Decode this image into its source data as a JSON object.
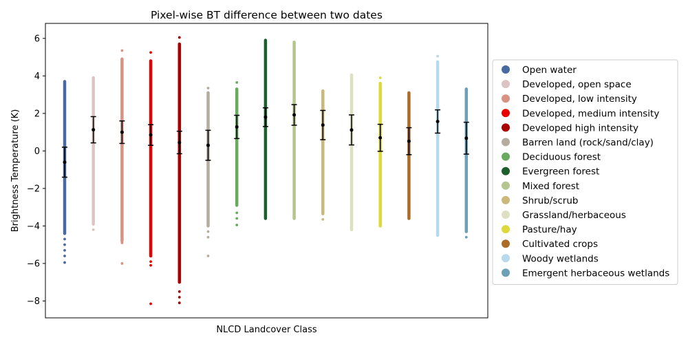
{
  "chart_data": {
    "type": "scatter",
    "title": "Pixel-wise BT difference between two dates",
    "xlabel": "NLCD Landcover Class",
    "ylabel": "Brightness Temperature (K)",
    "ylim": [
      -8.9,
      6.8
    ],
    "yticks": [
      -8,
      -6,
      -4,
      -2,
      0,
      2,
      4,
      6
    ],
    "grid": false,
    "legend_position": "right",
    "series": [
      {
        "name": "Open water",
        "color": "#476ba1",
        "min": -5.95,
        "max": 3.7,
        "mean": -0.6,
        "std": 0.8,
        "outliers_low": [
          -4.4,
          -4.7,
          -5.0,
          -5.3,
          -5.6,
          -5.95
        ]
      },
      {
        "name": "Developed, open space",
        "color": "#dcc4c4",
        "min": -4.2,
        "max": 3.9,
        "mean": 1.13,
        "std": 0.7,
        "outliers_low": [
          -3.9,
          -4.2
        ]
      },
      {
        "name": "Developed, low intensity",
        "color": "#d99282",
        "min": -6.0,
        "max": 5.35,
        "mean": 1.0,
        "std": 0.6,
        "outliers_low": [
          -4.8,
          -4.9,
          -6.0
        ],
        "outliers_high": [
          4.9,
          5.35
        ]
      },
      {
        "name": "Developed, medium intensity",
        "color": "#eb0000",
        "min": -8.15,
        "max": 5.25,
        "mean": 0.85,
        "std": 0.55,
        "outliers_low": [
          -5.6,
          -5.9,
          -6.1,
          -8.15
        ],
        "outliers_high": [
          4.8,
          5.25
        ]
      },
      {
        "name": "Developed high intensity",
        "color": "#ab0000",
        "min": -8.1,
        "max": 6.05,
        "mean": 0.45,
        "std": 0.6,
        "outliers_low": [
          -7.0,
          -7.5,
          -7.8,
          -8.1
        ],
        "outliers_high": [
          5.7,
          6.05
        ]
      },
      {
        "name": "Barren land (rock/sand/clay)",
        "color": "#b3ac9f",
        "min": -5.6,
        "max": 3.35,
        "mean": 0.3,
        "std": 0.8,
        "outliers_low": [
          -4.0,
          -4.3,
          -4.6,
          -5.6
        ],
        "outliers_high": [
          3.1,
          3.35
        ]
      },
      {
        "name": "Deciduous forest",
        "color": "#68ab5f",
        "min": -3.95,
        "max": 3.65,
        "mean": 1.28,
        "std": 0.62,
        "outliers_low": [
          -2.9,
          -3.3,
          -3.6,
          -3.95
        ],
        "outliers_high": [
          3.3,
          3.65
        ]
      },
      {
        "name": "Evergreen forest",
        "color": "#1c5f2c",
        "min": -3.6,
        "max": 5.9,
        "mean": 1.8,
        "std": 0.5
      },
      {
        "name": "Mixed forest",
        "color": "#b5c58f",
        "min": -3.6,
        "max": 5.8,
        "mean": 1.92,
        "std": 0.55
      },
      {
        "name": "Shrub/scrub",
        "color": "#ccb879",
        "min": -3.65,
        "max": 3.2,
        "mean": 1.38,
        "std": 0.78,
        "outliers_low": [
          -3.35,
          -3.65
        ]
      },
      {
        "name": "Grassland/herbaceous",
        "color": "#dfdfc2",
        "min": -4.2,
        "max": 4.05,
        "mean": 1.12,
        "std": 0.8,
        "outliers_low": [
          -4.2
        ]
      },
      {
        "name": "Pasture/hay",
        "color": "#dcd939",
        "min": -4.0,
        "max": 3.9,
        "mean": 0.7,
        "std": 0.72,
        "outliers_high": [
          3.6,
          3.9
        ]
      },
      {
        "name": "Cultivated crops",
        "color": "#ab6c28",
        "min": -3.6,
        "max": 3.1,
        "mean": 0.52,
        "std": 0.72
      },
      {
        "name": "Woody wetlands",
        "color": "#b8d9eb",
        "min": -4.5,
        "max": 5.05,
        "mean": 1.57,
        "std": 0.62,
        "outliers_high": [
          4.75,
          5.05
        ]
      },
      {
        "name": "Emergent herbaceous wetlands",
        "color": "#6c9fb8",
        "min": -4.6,
        "max": 3.3,
        "mean": 0.68,
        "std": 0.85,
        "outliers_low": [
          -4.3,
          -4.6
        ]
      }
    ]
  }
}
